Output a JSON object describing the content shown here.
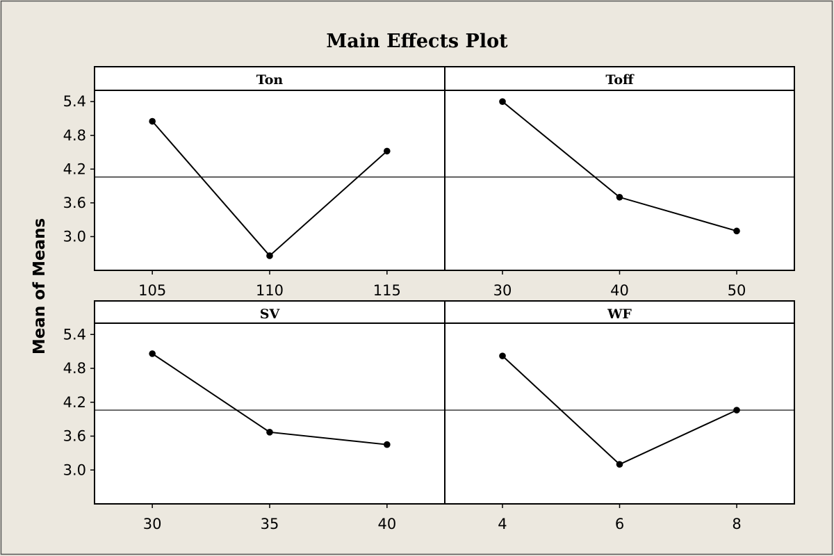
{
  "chart_data": {
    "type": "line",
    "title": "Main Effects Plot",
    "ylabel": "Mean of Means",
    "ylim": [
      2.4,
      5.6
    ],
    "yticks": [
      "3.0",
      "3.6",
      "4.2",
      "4.8",
      "5.4"
    ],
    "reference_line": 4.06,
    "panels": [
      {
        "name": "Ton",
        "categories": [
          "105",
          "110",
          "115"
        ],
        "values": [
          5.05,
          2.66,
          4.52
        ]
      },
      {
        "name": "Toff",
        "categories": [
          "30",
          "40",
          "50"
        ],
        "values": [
          5.4,
          3.7,
          3.1
        ]
      },
      {
        "name": "SV",
        "categories": [
          "30",
          "35",
          "40"
        ],
        "values": [
          5.06,
          3.67,
          3.45
        ]
      },
      {
        "name": "WF",
        "categories": [
          "4",
          "6",
          "8"
        ],
        "values": [
          5.02,
          3.1,
          4.06
        ]
      }
    ]
  },
  "colors": {
    "background": "#ece8df",
    "panel": "#ffffff",
    "line": "#000000",
    "reference": "#3a3a3a"
  }
}
